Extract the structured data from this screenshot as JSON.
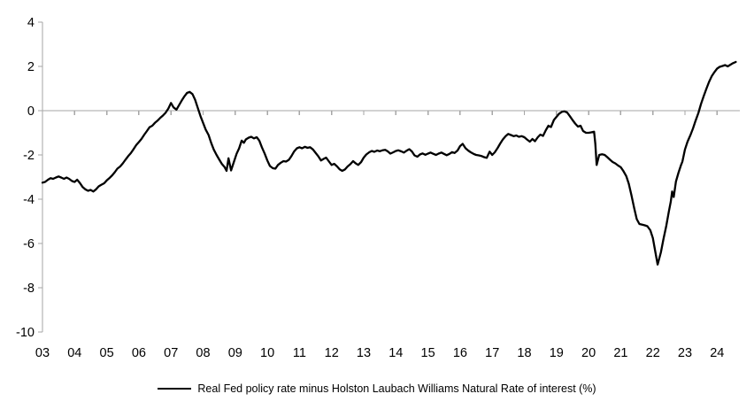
{
  "chart_data": {
    "type": "line",
    "title": "",
    "xlabel": "",
    "ylabel": "",
    "xlim": [
      2003,
      2024.7
    ],
    "ylim": [
      -10,
      4
    ],
    "grid": "zero-line-only",
    "legend_position": "bottom-center",
    "axis_color": "#a6a6a6",
    "text_color": "#000000",
    "x_ticks": {
      "values": [
        2003,
        2004,
        2005,
        2006,
        2007,
        2008,
        2009,
        2010,
        2011,
        2012,
        2013,
        2014,
        2015,
        2016,
        2017,
        2018,
        2019,
        2020,
        2021,
        2022,
        2023,
        2024
      ],
      "labels": [
        "03",
        "04",
        "05",
        "06",
        "07",
        "08",
        "09",
        "10",
        "11",
        "12",
        "13",
        "14",
        "15",
        "16",
        "17",
        "18",
        "19",
        "20",
        "21",
        "22",
        "23",
        "24"
      ]
    },
    "y_ticks": [
      4,
      2,
      0,
      -2,
      -4,
      -6,
      -8,
      -10
    ],
    "series": [
      {
        "name": "Real Fed policy rate minus Holston Laubach Williams Natural Rate of interest (%)",
        "color": "#000000",
        "points": [
          [
            2003.0,
            -3.25
          ],
          [
            2003.08,
            -3.22
          ],
          [
            2003.17,
            -3.12
          ],
          [
            2003.25,
            -3.05
          ],
          [
            2003.33,
            -3.08
          ],
          [
            2003.42,
            -3.02
          ],
          [
            2003.5,
            -2.97
          ],
          [
            2003.58,
            -3.02
          ],
          [
            2003.67,
            -3.08
          ],
          [
            2003.75,
            -3.02
          ],
          [
            2003.83,
            -3.08
          ],
          [
            2003.92,
            -3.18
          ],
          [
            2004.0,
            -3.22
          ],
          [
            2004.08,
            -3.12
          ],
          [
            2004.17,
            -3.28
          ],
          [
            2004.25,
            -3.45
          ],
          [
            2004.33,
            -3.55
          ],
          [
            2004.42,
            -3.62
          ],
          [
            2004.5,
            -3.58
          ],
          [
            2004.58,
            -3.65
          ],
          [
            2004.67,
            -3.55
          ],
          [
            2004.75,
            -3.42
          ],
          [
            2004.83,
            -3.35
          ],
          [
            2004.92,
            -3.28
          ],
          [
            2005.0,
            -3.15
          ],
          [
            2005.08,
            -3.05
          ],
          [
            2005.17,
            -2.92
          ],
          [
            2005.25,
            -2.78
          ],
          [
            2005.33,
            -2.62
          ],
          [
            2005.42,
            -2.52
          ],
          [
            2005.5,
            -2.38
          ],
          [
            2005.58,
            -2.22
          ],
          [
            2005.67,
            -2.05
          ],
          [
            2005.75,
            -1.92
          ],
          [
            2005.83,
            -1.75
          ],
          [
            2005.92,
            -1.55
          ],
          [
            2006.0,
            -1.42
          ],
          [
            2006.08,
            -1.28
          ],
          [
            2006.17,
            -1.08
          ],
          [
            2006.25,
            -0.92
          ],
          [
            2006.33,
            -0.75
          ],
          [
            2006.42,
            -0.68
          ],
          [
            2006.5,
            -0.55
          ],
          [
            2006.58,
            -0.45
          ],
          [
            2006.67,
            -0.32
          ],
          [
            2006.75,
            -0.22
          ],
          [
            2006.83,
            -0.1
          ],
          [
            2006.92,
            0.1
          ],
          [
            2007.0,
            0.35
          ],
          [
            2007.08,
            0.15
          ],
          [
            2007.17,
            0.05
          ],
          [
            2007.25,
            0.25
          ],
          [
            2007.33,
            0.45
          ],
          [
            2007.42,
            0.65
          ],
          [
            2007.5,
            0.8
          ],
          [
            2007.58,
            0.85
          ],
          [
            2007.67,
            0.75
          ],
          [
            2007.75,
            0.5
          ],
          [
            2007.83,
            0.15
          ],
          [
            2007.92,
            -0.25
          ],
          [
            2008.0,
            -0.55
          ],
          [
            2008.08,
            -0.85
          ],
          [
            2008.17,
            -1.1
          ],
          [
            2008.25,
            -1.45
          ],
          [
            2008.33,
            -1.75
          ],
          [
            2008.42,
            -2.0
          ],
          [
            2008.5,
            -2.2
          ],
          [
            2008.58,
            -2.4
          ],
          [
            2008.67,
            -2.55
          ],
          [
            2008.73,
            -2.72
          ],
          [
            2008.79,
            -2.15
          ],
          [
            2008.87,
            -2.7
          ],
          [
            2008.95,
            -2.35
          ],
          [
            2009.04,
            -1.95
          ],
          [
            2009.12,
            -1.7
          ],
          [
            2009.2,
            -1.35
          ],
          [
            2009.27,
            -1.45
          ],
          [
            2009.33,
            -1.3
          ],
          [
            2009.42,
            -1.22
          ],
          [
            2009.5,
            -1.18
          ],
          [
            2009.58,
            -1.25
          ],
          [
            2009.67,
            -1.2
          ],
          [
            2009.75,
            -1.35
          ],
          [
            2009.83,
            -1.65
          ],
          [
            2009.92,
            -1.95
          ],
          [
            2010.0,
            -2.25
          ],
          [
            2010.08,
            -2.5
          ],
          [
            2010.17,
            -2.6
          ],
          [
            2010.25,
            -2.62
          ],
          [
            2010.33,
            -2.45
          ],
          [
            2010.42,
            -2.35
          ],
          [
            2010.5,
            -2.28
          ],
          [
            2010.58,
            -2.3
          ],
          [
            2010.67,
            -2.22
          ],
          [
            2010.75,
            -2.05
          ],
          [
            2010.83,
            -1.85
          ],
          [
            2010.92,
            -1.7
          ],
          [
            2011.0,
            -1.65
          ],
          [
            2011.08,
            -1.7
          ],
          [
            2011.17,
            -1.63
          ],
          [
            2011.25,
            -1.68
          ],
          [
            2011.33,
            -1.65
          ],
          [
            2011.42,
            -1.75
          ],
          [
            2011.5,
            -1.9
          ],
          [
            2011.58,
            -2.05
          ],
          [
            2011.67,
            -2.25
          ],
          [
            2011.75,
            -2.18
          ],
          [
            2011.83,
            -2.12
          ],
          [
            2011.92,
            -2.3
          ],
          [
            2012.0,
            -2.45
          ],
          [
            2012.08,
            -2.4
          ],
          [
            2012.17,
            -2.52
          ],
          [
            2012.25,
            -2.65
          ],
          [
            2012.33,
            -2.72
          ],
          [
            2012.42,
            -2.65
          ],
          [
            2012.5,
            -2.52
          ],
          [
            2012.58,
            -2.42
          ],
          [
            2012.67,
            -2.28
          ],
          [
            2012.75,
            -2.38
          ],
          [
            2012.83,
            -2.45
          ],
          [
            2012.92,
            -2.32
          ],
          [
            2013.0,
            -2.12
          ],
          [
            2013.08,
            -1.98
          ],
          [
            2013.17,
            -1.88
          ],
          [
            2013.25,
            -1.82
          ],
          [
            2013.33,
            -1.86
          ],
          [
            2013.42,
            -1.8
          ],
          [
            2013.5,
            -1.83
          ],
          [
            2013.58,
            -1.79
          ],
          [
            2013.67,
            -1.77
          ],
          [
            2013.75,
            -1.84
          ],
          [
            2013.83,
            -1.94
          ],
          [
            2013.92,
            -1.88
          ],
          [
            2014.0,
            -1.82
          ],
          [
            2014.08,
            -1.79
          ],
          [
            2014.17,
            -1.84
          ],
          [
            2014.25,
            -1.89
          ],
          [
            2014.33,
            -1.81
          ],
          [
            2014.42,
            -1.74
          ],
          [
            2014.5,
            -1.84
          ],
          [
            2014.58,
            -2.02
          ],
          [
            2014.67,
            -2.08
          ],
          [
            2014.75,
            -1.98
          ],
          [
            2014.83,
            -1.93
          ],
          [
            2014.92,
            -1.99
          ],
          [
            2015.0,
            -1.94
          ],
          [
            2015.08,
            -1.89
          ],
          [
            2015.17,
            -1.95
          ],
          [
            2015.25,
            -2.0
          ],
          [
            2015.33,
            -1.94
          ],
          [
            2015.42,
            -1.89
          ],
          [
            2015.5,
            -1.95
          ],
          [
            2015.58,
            -2.01
          ],
          [
            2015.67,
            -1.95
          ],
          [
            2015.75,
            -1.87
          ],
          [
            2015.83,
            -1.91
          ],
          [
            2015.92,
            -1.8
          ],
          [
            2016.0,
            -1.6
          ],
          [
            2016.08,
            -1.5
          ],
          [
            2016.17,
            -1.7
          ],
          [
            2016.25,
            -1.8
          ],
          [
            2016.33,
            -1.88
          ],
          [
            2016.42,
            -1.95
          ],
          [
            2016.5,
            -2.0
          ],
          [
            2016.58,
            -2.02
          ],
          [
            2016.67,
            -2.05
          ],
          [
            2016.75,
            -2.1
          ],
          [
            2016.83,
            -2.13
          ],
          [
            2016.92,
            -1.85
          ],
          [
            2017.0,
            -2.0
          ],
          [
            2017.08,
            -1.88
          ],
          [
            2017.17,
            -1.68
          ],
          [
            2017.25,
            -1.48
          ],
          [
            2017.33,
            -1.3
          ],
          [
            2017.42,
            -1.15
          ],
          [
            2017.5,
            -1.05
          ],
          [
            2017.58,
            -1.1
          ],
          [
            2017.67,
            -1.15
          ],
          [
            2017.75,
            -1.12
          ],
          [
            2017.83,
            -1.18
          ],
          [
            2017.92,
            -1.15
          ],
          [
            2018.0,
            -1.2
          ],
          [
            2018.08,
            -1.3
          ],
          [
            2018.17,
            -1.4
          ],
          [
            2018.25,
            -1.28
          ],
          [
            2018.33,
            -1.38
          ],
          [
            2018.42,
            -1.2
          ],
          [
            2018.5,
            -1.08
          ],
          [
            2018.58,
            -1.14
          ],
          [
            2018.67,
            -0.88
          ],
          [
            2018.75,
            -0.68
          ],
          [
            2018.83,
            -0.74
          ],
          [
            2018.92,
            -0.42
          ],
          [
            2019.0,
            -0.28
          ],
          [
            2019.08,
            -0.14
          ],
          [
            2019.17,
            -0.05
          ],
          [
            2019.25,
            -0.03
          ],
          [
            2019.33,
            -0.08
          ],
          [
            2019.42,
            -0.25
          ],
          [
            2019.5,
            -0.42
          ],
          [
            2019.58,
            -0.58
          ],
          [
            2019.67,
            -0.72
          ],
          [
            2019.75,
            -0.68
          ],
          [
            2019.83,
            -0.92
          ],
          [
            2019.92,
            -1.0
          ],
          [
            2020.0,
            -1.0
          ],
          [
            2020.08,
            -0.98
          ],
          [
            2020.17,
            -0.95
          ],
          [
            2020.21,
            -1.5
          ],
          [
            2020.25,
            -2.45
          ],
          [
            2020.33,
            -2.0
          ],
          [
            2020.42,
            -1.97
          ],
          [
            2020.5,
            -2.0
          ],
          [
            2020.58,
            -2.1
          ],
          [
            2020.67,
            -2.22
          ],
          [
            2020.75,
            -2.32
          ],
          [
            2020.83,
            -2.38
          ],
          [
            2020.92,
            -2.48
          ],
          [
            2021.0,
            -2.55
          ],
          [
            2021.08,
            -2.72
          ],
          [
            2021.17,
            -2.95
          ],
          [
            2021.25,
            -3.3
          ],
          [
            2021.33,
            -3.8
          ],
          [
            2021.42,
            -4.4
          ],
          [
            2021.5,
            -4.9
          ],
          [
            2021.58,
            -5.12
          ],
          [
            2021.67,
            -5.15
          ],
          [
            2021.75,
            -5.18
          ],
          [
            2021.83,
            -5.22
          ],
          [
            2021.92,
            -5.4
          ],
          [
            2022.0,
            -5.75
          ],
          [
            2022.08,
            -6.4
          ],
          [
            2022.15,
            -6.95
          ],
          [
            2022.25,
            -6.4
          ],
          [
            2022.33,
            -5.8
          ],
          [
            2022.42,
            -5.2
          ],
          [
            2022.5,
            -4.55
          ],
          [
            2022.56,
            -4.1
          ],
          [
            2022.6,
            -3.65
          ],
          [
            2022.65,
            -3.9
          ],
          [
            2022.72,
            -3.2
          ],
          [
            2022.8,
            -2.8
          ],
          [
            2022.88,
            -2.45
          ],
          [
            2022.92,
            -2.3
          ],
          [
            2023.0,
            -1.75
          ],
          [
            2023.08,
            -1.4
          ],
          [
            2023.17,
            -1.1
          ],
          [
            2023.25,
            -0.8
          ],
          [
            2023.33,
            -0.45
          ],
          [
            2023.42,
            -0.1
          ],
          [
            2023.5,
            0.3
          ],
          [
            2023.58,
            0.65
          ],
          [
            2023.67,
            1.0
          ],
          [
            2023.75,
            1.3
          ],
          [
            2023.83,
            1.55
          ],
          [
            2023.92,
            1.75
          ],
          [
            2024.0,
            1.9
          ],
          [
            2024.08,
            1.98
          ],
          [
            2024.17,
            2.02
          ],
          [
            2024.25,
            2.06
          ],
          [
            2024.33,
            2.0
          ],
          [
            2024.42,
            2.08
          ],
          [
            2024.5,
            2.15
          ],
          [
            2024.58,
            2.2
          ]
        ]
      }
    ]
  },
  "legend": {
    "marker": "line-marker",
    "label": "Real Fed policy rate minus Holston Laubach Williams Natural Rate of interest (%)"
  }
}
